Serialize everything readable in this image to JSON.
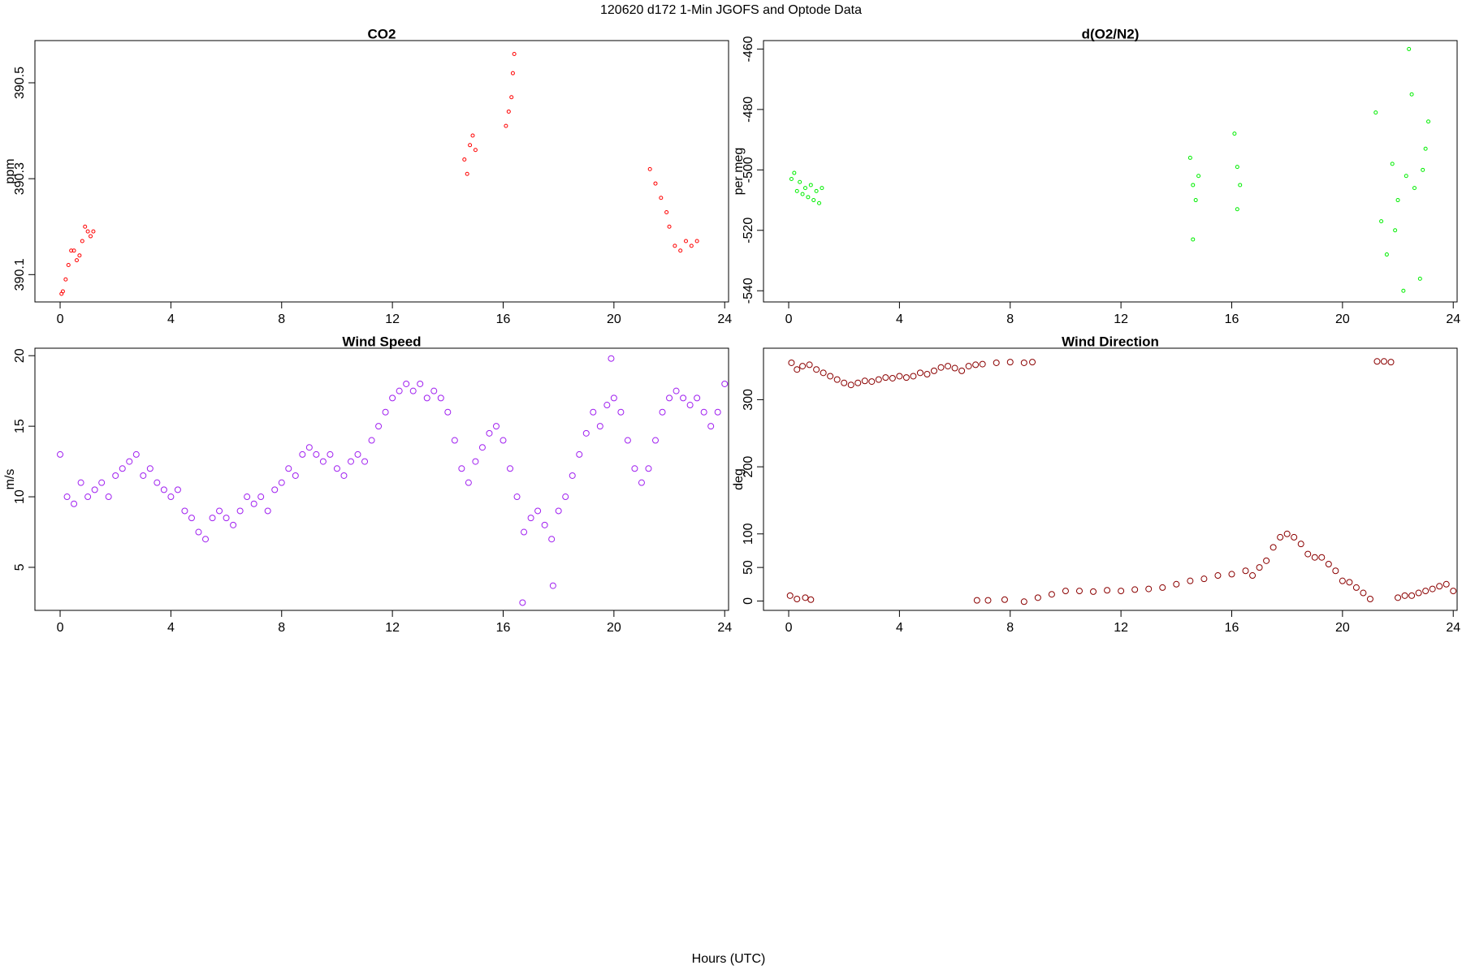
{
  "title": "120620   d172   1-Min  JGOFS and Optode Data",
  "xlabel": "Hours (UTC)",
  "chart_data": [
    {
      "type": "scatter",
      "title": "CO2",
      "ylabel": "ppm",
      "color": "#ff0000",
      "point_size": 2,
      "xlim": [
        -0.91,
        24.14
      ],
      "xticks": [
        0,
        4,
        8,
        12,
        16,
        20,
        24
      ],
      "ylim": [
        390.043,
        390.588
      ],
      "yticks": [
        390.1,
        390.3,
        390.5
      ],
      "x": [
        0.05,
        0.1,
        0.2,
        0.3,
        0.4,
        0.5,
        0.6,
        0.7,
        0.8,
        0.9,
        1.0,
        1.1,
        1.2,
        14.6,
        14.7,
        14.8,
        14.9,
        15.0,
        16.1,
        16.2,
        16.3,
        16.35,
        16.4,
        21.3,
        21.5,
        21.7,
        21.9,
        22.0,
        22.2,
        22.4,
        22.6,
        22.8,
        23.0
      ],
      "values": [
        390.06,
        390.065,
        390.09,
        390.12,
        390.15,
        390.15,
        390.13,
        390.14,
        390.17,
        390.2,
        390.19,
        390.18,
        390.19,
        390.34,
        390.31,
        390.37,
        390.39,
        390.36,
        390.41,
        390.44,
        390.47,
        390.52,
        390.56,
        390.32,
        390.29,
        390.26,
        390.23,
        390.2,
        390.16,
        390.15,
        390.17,
        390.16,
        390.17
      ]
    },
    {
      "type": "scatter",
      "title": "d(O2/N2)",
      "ylabel": "per meg",
      "color": "#00ee00",
      "point_size": 2,
      "xlim": [
        -0.91,
        24.14
      ],
      "xticks": [
        0,
        4,
        8,
        12,
        16,
        20,
        24
      ],
      "ylim": [
        -543.7,
        -457.2
      ],
      "yticks": [
        -540,
        -520,
        -500,
        -480,
        -460
      ],
      "x": [
        0.1,
        0.2,
        0.3,
        0.4,
        0.5,
        0.6,
        0.7,
        0.8,
        0.9,
        1.0,
        1.1,
        1.2,
        14.5,
        14.6,
        14.7,
        14.8,
        14.6,
        16.1,
        16.2,
        16.3,
        16.2,
        21.2,
        21.4,
        21.6,
        21.8,
        22.0,
        22.2,
        22.3,
        22.5,
        22.6,
        22.8,
        22.9,
        23.0,
        22.4,
        23.1,
        21.9
      ],
      "values": [
        -503,
        -501,
        -507,
        -504,
        -508,
        -506,
        -509,
        -505,
        -510,
        -507,
        -511,
        -506,
        -496,
        -505,
        -510,
        -502,
        -523,
        -488,
        -499,
        -505,
        -513,
        -481,
        -517,
        -528,
        -498,
        -510,
        -540,
        -502,
        -475,
        -506,
        -536,
        -500,
        -493,
        -460,
        -484,
        -520
      ]
    },
    {
      "type": "scatter",
      "title": "Wind Speed",
      "ylabel": "m/s",
      "color": "#a020f0",
      "point_size": 3.5,
      "xlim": [
        -0.91,
        24.14
      ],
      "xticks": [
        0,
        4,
        8,
        12,
        16,
        20,
        24
      ],
      "ylim": [
        1.95,
        20.53
      ],
      "yticks": [
        5,
        10,
        15,
        20
      ],
      "x": [
        0,
        0.25,
        0.5,
        0.75,
        1,
        1.25,
        1.5,
        1.75,
        2,
        2.25,
        2.5,
        2.75,
        3,
        3.25,
        3.5,
        3.75,
        4,
        4.25,
        4.5,
        4.75,
        5,
        5.25,
        5.5,
        5.75,
        6,
        6.25,
        6.5,
        6.75,
        7,
        7.25,
        7.5,
        7.75,
        8,
        8.25,
        8.5,
        8.75,
        9,
        9.25,
        9.5,
        9.75,
        10,
        10.25,
        10.5,
        10.75,
        11,
        11.25,
        11.5,
        11.75,
        12,
        12.25,
        12.5,
        12.75,
        13,
        13.25,
        13.5,
        13.75,
        14,
        14.25,
        14.5,
        14.75,
        15,
        15.25,
        15.5,
        15.75,
        16,
        16.25,
        16.5,
        16.75,
        17,
        17.25,
        17.5,
        17.75,
        18,
        18.25,
        18.5,
        18.75,
        19,
        19.25,
        19.5,
        19.75,
        20,
        20.25,
        20.5,
        20.75,
        21,
        21.25,
        21.5,
        21.75,
        22,
        22.25,
        22.5,
        22.75,
        23,
        23.25,
        23.5,
        23.75,
        24,
        16.7,
        17.8,
        19.9
      ],
      "values": [
        13,
        10,
        9.5,
        11,
        10,
        10.5,
        11,
        10,
        11.5,
        12,
        12.5,
        13,
        11.5,
        12,
        11,
        10.5,
        10,
        10.5,
        9,
        8.5,
        7.5,
        7,
        8.5,
        9,
        8.5,
        8,
        9,
        10,
        9.5,
        10,
        9,
        10.5,
        11,
        12,
        11.5,
        13,
        13.5,
        13,
        12.5,
        13,
        12,
        11.5,
        12.5,
        13,
        12.5,
        14,
        15,
        16,
        17,
        17.5,
        18,
        17.5,
        18,
        17,
        17.5,
        17,
        16,
        14,
        12,
        11,
        12.5,
        13.5,
        14.5,
        15,
        14,
        12,
        10,
        7.5,
        8.5,
        9,
        8,
        7,
        9,
        10,
        11.5,
        13,
        14.5,
        16,
        15,
        16.5,
        17,
        16,
        14,
        12,
        11,
        12,
        14,
        16,
        17,
        17.5,
        17,
        16.5,
        17,
        16,
        15,
        16,
        18,
        2.5,
        3.7,
        19.8
      ]
    },
    {
      "type": "scatter",
      "title": "Wind Direction",
      "ylabel": "deg",
      "color": "#8b0000",
      "point_size": 3.5,
      "xlim": [
        -0.91,
        24.14
      ],
      "xticks": [
        0,
        4,
        8,
        12,
        16,
        20,
        24
      ],
      "ylim": [
        -13.95,
        376.7
      ],
      "yticks": [
        0,
        50,
        100,
        200,
        300
      ],
      "x": [
        0.1,
        0.3,
        0.5,
        0.75,
        1,
        1.25,
        1.5,
        1.75,
        2,
        2.25,
        2.5,
        2.75,
        3,
        3.25,
        3.5,
        3.75,
        4,
        4.25,
        4.5,
        4.75,
        5,
        5.25,
        5.5,
        5.75,
        6,
        6.25,
        6.5,
        6.75,
        7,
        7.5,
        8,
        8.5,
        8.8,
        0.05,
        0.3,
        0.6,
        0.8,
        6.8,
        7.2,
        7.8,
        8.5,
        9,
        9.5,
        10,
        10.5,
        11,
        11.5,
        12,
        12.5,
        13,
        13.5,
        14,
        14.5,
        15,
        15.5,
        16,
        16.5,
        16.75,
        17,
        17.25,
        17.5,
        17.75,
        18,
        18.25,
        18.5,
        18.75,
        19,
        19.25,
        19.5,
        19.75,
        20,
        20.25,
        20.5,
        20.75,
        21,
        21.25,
        21.5,
        21.75,
        22,
        22.25,
        22.5,
        22.75,
        23,
        23.25,
        23.5,
        23.75,
        24
      ],
      "values": [
        355,
        345,
        350,
        352,
        345,
        340,
        335,
        330,
        325,
        322,
        325,
        328,
        327,
        330,
        333,
        332,
        335,
        333,
        335,
        340,
        338,
        343,
        348,
        350,
        347,
        343,
        350,
        352,
        353,
        355,
        356,
        355,
        356,
        8,
        3,
        5,
        2,
        1,
        1,
        2,
        -1,
        5,
        10,
        15,
        15,
        14,
        16,
        15,
        17,
        18,
        20,
        25,
        30,
        33,
        38,
        40,
        45,
        38,
        50,
        60,
        80,
        95,
        100,
        95,
        85,
        70,
        65,
        65,
        55,
        45,
        30,
        28,
        20,
        12,
        3,
        357,
        357,
        356,
        5,
        8,
        8,
        12,
        15,
        18,
        22,
        25,
        15
      ]
    }
  ]
}
